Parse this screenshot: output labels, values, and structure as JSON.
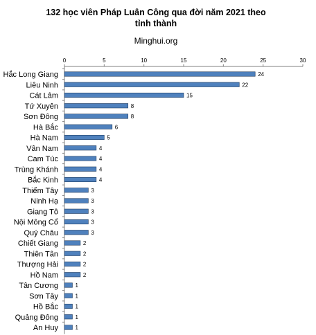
{
  "title_line1": "132 học viên Pháp Luân Công qua đời năm 2021 theo",
  "title_line2": "tỉnh thành",
  "subtitle": "Minghui.org",
  "colors": {
    "bar_fill": "#4f81bd",
    "bar_stroke": "#1f3a5c",
    "axis": "#808080"
  },
  "chart_data": {
    "type": "bar",
    "orientation": "horizontal",
    "title": "132 học viên Pháp Luân Công qua đời năm 2021 theo tỉnh thành",
    "subtitle": "Minghui.org",
    "xlabel": "",
    "ylabel": "",
    "xlim": [
      0,
      30
    ],
    "ticks": [
      0,
      5,
      10,
      15,
      20,
      25,
      30
    ],
    "tick_labels": [
      "0",
      "5",
      "10",
      "15",
      "20",
      "25",
      "30"
    ],
    "axis_position": "top",
    "grid": false,
    "legend": "none",
    "categories": [
      "Hắc Long Giang",
      "Liêu Ninh",
      "Cát Lâm",
      "Tứ Xuyên",
      "Sơn Đông",
      "Hà Bắc",
      "Hà Nam",
      "Vân Nam",
      "Cam Túc",
      "Trùng Khánh",
      "Bắc Kinh",
      "Thiểm Tây",
      "Ninh Hạ",
      "Giang Tô",
      "Nội Mông Cổ",
      "Quý Châu",
      "Chiết Giang",
      "Thiên Tân",
      "Thượng Hải",
      "Hồ Nam",
      "Tân Cương",
      "Sơn Tây",
      "Hồ Bắc",
      "Quảng Đông",
      "An Huy"
    ],
    "values": [
      24,
      22,
      15,
      8,
      8,
      6,
      5,
      4,
      4,
      4,
      4,
      3,
      3,
      3,
      3,
      3,
      2,
      2,
      2,
      2,
      1,
      1,
      1,
      1,
      1
    ]
  }
}
